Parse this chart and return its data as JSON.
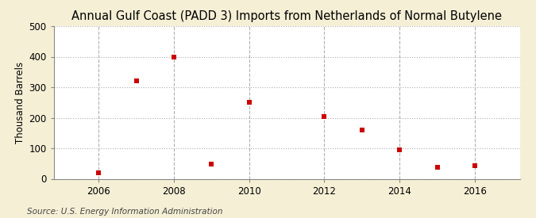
{
  "title": "Annual Gulf Coast (PADD 3) Imports from Netherlands of Normal Butylene",
  "ylabel": "Thousand Barrels",
  "source": "Source: U.S. Energy Information Administration",
  "background_color": "#f5efd5",
  "plot_background_color": "#ffffff",
  "grid_color": "#b0b0b0",
  "marker_color": "#cc0000",
  "marker_size": 5,
  "xlim": [
    2004.8,
    2017.2
  ],
  "ylim": [
    0,
    500
  ],
  "yticks": [
    0,
    100,
    200,
    300,
    400,
    500
  ],
  "xticks": [
    2006,
    2008,
    2010,
    2012,
    2014,
    2016
  ],
  "data_x": [
    2006,
    2007,
    2008,
    2009,
    2010,
    2012,
    2013,
    2014,
    2015,
    2016
  ],
  "data_y": [
    20,
    320,
    400,
    47,
    250,
    205,
    160,
    95,
    37,
    43
  ],
  "title_fontsize": 10.5,
  "axis_label_fontsize": 8.5,
  "tick_fontsize": 8.5,
  "source_fontsize": 7.5
}
